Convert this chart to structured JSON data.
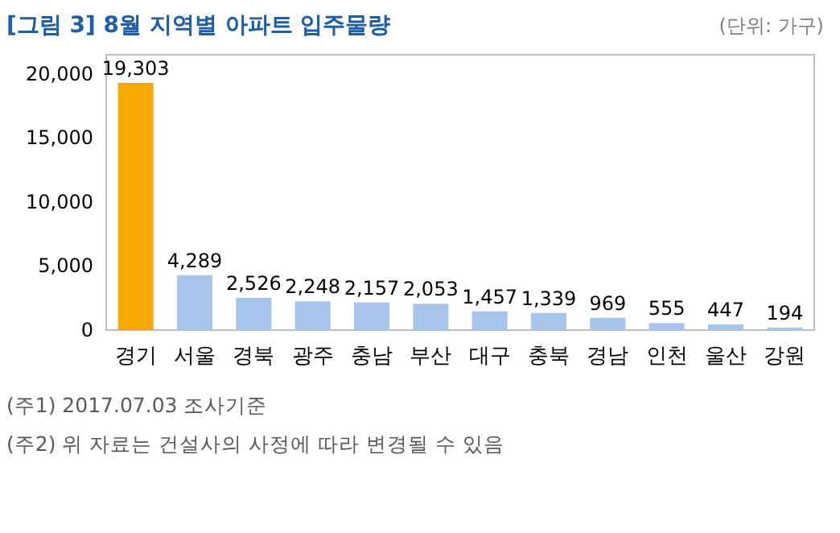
{
  "chart_data": {
    "type": "bar",
    "title": "[그림 3] 8월 지역별 아파트 입주물량",
    "subtitle": "(단위: 가구)",
    "categories": [
      "경기",
      "서울",
      "경북",
      "광주",
      "충남",
      "부산",
      "대구",
      "충북",
      "경남",
      "인천",
      "울산",
      "강원"
    ],
    "values": [
      19303,
      4289,
      2526,
      2248,
      2157,
      2053,
      1457,
      1339,
      969,
      555,
      447,
      194
    ],
    "colors": [
      "#f5a800",
      "#a9c4eb",
      "#a9c4eb",
      "#a9c4eb",
      "#a9c4eb",
      "#a9c4eb",
      "#a9c4eb",
      "#a9c4eb",
      "#a9c4eb",
      "#a9c4eb",
      "#a9c4eb",
      "#a9c4eb"
    ],
    "value_labels": [
      "19,303",
      "4,289",
      "2,526",
      "2,248",
      "2,157",
      "2,053",
      "1,457",
      "1,339",
      "969",
      "555",
      "447",
      "194"
    ],
    "ylim": [
      0,
      21500
    ],
    "yticks": [
      {
        "value": 0,
        "label": "0"
      },
      {
        "value": 5000,
        "label": "5,000"
      },
      {
        "value": 10000,
        "label": "10,000"
      },
      {
        "value": 15000,
        "label": "15,000"
      },
      {
        "value": 20000,
        "label": "20,000"
      }
    ],
    "annotations": [
      "(주1) 2017.07.03 조사기준",
      "(주2) 위 자료는 건설사의 사정에 따라 변경될 수 있음"
    ]
  }
}
